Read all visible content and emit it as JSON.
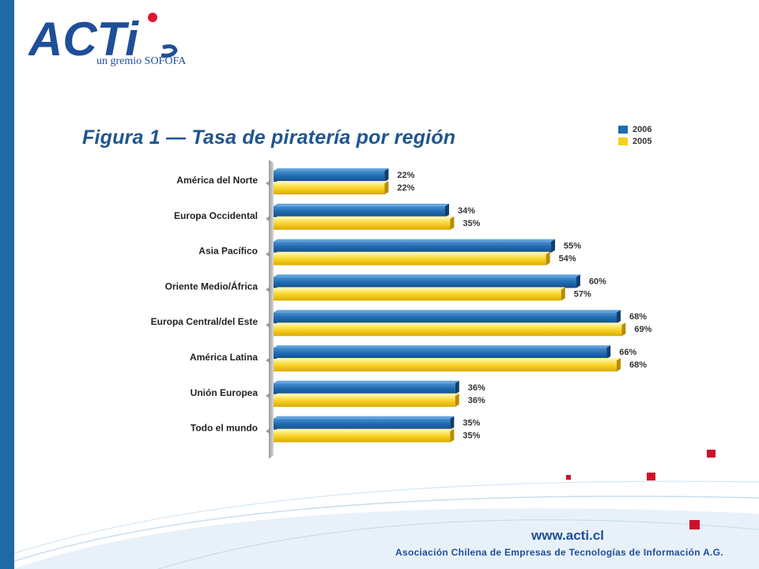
{
  "brand": {
    "logo_text": "ACTi",
    "subtitle": "un gremio SOFOFA",
    "color_primary": "#1f6aa5",
    "color_accent": "#e0182d"
  },
  "footer": {
    "url": "www.acti.cl",
    "org": "Asociación Chilena de Empresas de Tecnologías de Información A.G."
  },
  "chart_data": {
    "type": "bar",
    "orientation": "horizontal",
    "title": "Figura 1 — Tasa de piratería por región",
    "categories": [
      "América del Norte",
      "Europa Occidental",
      "Asia Pacífico",
      "Oriente Medio/África",
      "Europa Central/del Este",
      "América Latina",
      "Unión Europea",
      "Todo el mundo"
    ],
    "series": [
      {
        "name": "2006",
        "color": "#1f6ab0",
        "values": [
          22,
          34,
          55,
          60,
          68,
          66,
          36,
          35
        ],
        "labels": [
          "22%",
          "34%",
          "55%",
          "60%",
          "68%",
          "66%",
          "36%",
          "35%"
        ]
      },
      {
        "name": "2005",
        "color": "#f7cf1e",
        "values": [
          22,
          35,
          54,
          57,
          69,
          68,
          36,
          35
        ],
        "labels": [
          "22%",
          "35%",
          "54%",
          "57%",
          "69%",
          "68%",
          "36%",
          "35%"
        ]
      }
    ],
    "xlim": [
      0,
      70
    ],
    "legend_position": "top-right",
    "grid": false
  }
}
